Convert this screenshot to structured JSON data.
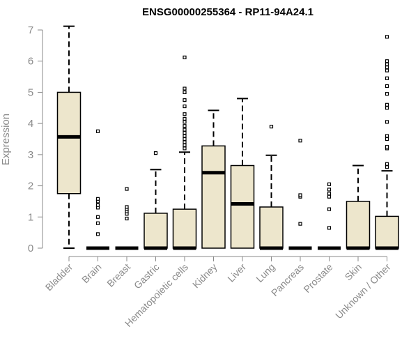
{
  "chart_data": {
    "type": "box",
    "title": "ENSG00000255364 - RP11-94A24.1",
    "xlabel": "",
    "ylabel": "Expression",
    "ylim": [
      0,
      7
    ],
    "yticks": [
      0,
      1,
      2,
      3,
      4,
      5,
      6,
      7
    ],
    "grid": false,
    "box_fill": "#ede6cc",
    "box_stroke": "#000000",
    "axis_color": "#8a8a8a",
    "categories": [
      "Bladder",
      "Brain",
      "Breast",
      "Gastric",
      "Hematopoietic cells",
      "Kidney",
      "Liver",
      "Lung",
      "Pancreas",
      "Prostate",
      "Skin",
      "Unknown / Other"
    ],
    "boxes": [
      {
        "min": 0,
        "q1": 1.75,
        "median": 3.57,
        "q3": 5.0,
        "max": 7.12,
        "outliers": []
      },
      {
        "min": 0,
        "q1": 0,
        "median": 0,
        "q3": 0,
        "max": 0,
        "outliers": [
          0.45,
          0.8,
          1.0,
          1.3,
          1.38,
          1.5,
          1.58,
          3.75
        ]
      },
      {
        "min": 0,
        "q1": 0,
        "median": 0,
        "q3": 0,
        "max": 0,
        "outliers": [
          0.95,
          1.1,
          1.18,
          1.25,
          1.32,
          1.9
        ]
      },
      {
        "min": 0,
        "q1": 0,
        "median": 0,
        "q3": 1.12,
        "max": 2.52,
        "outliers": [
          3.05
        ]
      },
      {
        "min": 0,
        "q1": 0,
        "median": 0,
        "q3": 1.25,
        "max": 3.08,
        "outliers": [
          3.2,
          3.3,
          3.4,
          3.5,
          3.6,
          3.7,
          3.8,
          3.92,
          4.05,
          4.15,
          4.3,
          4.55,
          4.75,
          5.0,
          5.12,
          6.12
        ]
      },
      {
        "min": 0,
        "q1": 0,
        "median": 2.42,
        "q3": 3.28,
        "max": 4.42,
        "outliers": []
      },
      {
        "min": 0,
        "q1": 0,
        "median": 1.42,
        "q3": 2.65,
        "max": 4.8,
        "outliers": []
      },
      {
        "min": 0,
        "q1": 0,
        "median": 0,
        "q3": 1.32,
        "max": 2.98,
        "outliers": [
          3.9
        ]
      },
      {
        "min": 0,
        "q1": 0,
        "median": 0,
        "q3": 0,
        "max": 0,
        "outliers": [
          0.78,
          1.65,
          1.7,
          3.45
        ]
      },
      {
        "min": 0,
        "q1": 0,
        "median": 0,
        "q3": 0,
        "max": 0,
        "outliers": [
          0.65,
          1.25,
          1.65,
          1.75,
          1.88,
          2.05
        ]
      },
      {
        "min": 0,
        "q1": 0,
        "median": 0,
        "q3": 1.5,
        "max": 2.65,
        "outliers": []
      },
      {
        "min": 0,
        "q1": 0,
        "median": 0,
        "q3": 1.02,
        "max": 2.48,
        "outliers": [
          2.6,
          2.7,
          3.2,
          3.25,
          3.5,
          3.6,
          4.05,
          4.5,
          4.6,
          4.95,
          5.2,
          5.45,
          5.7,
          5.8,
          5.9,
          6.0,
          6.78
        ]
      }
    ]
  }
}
